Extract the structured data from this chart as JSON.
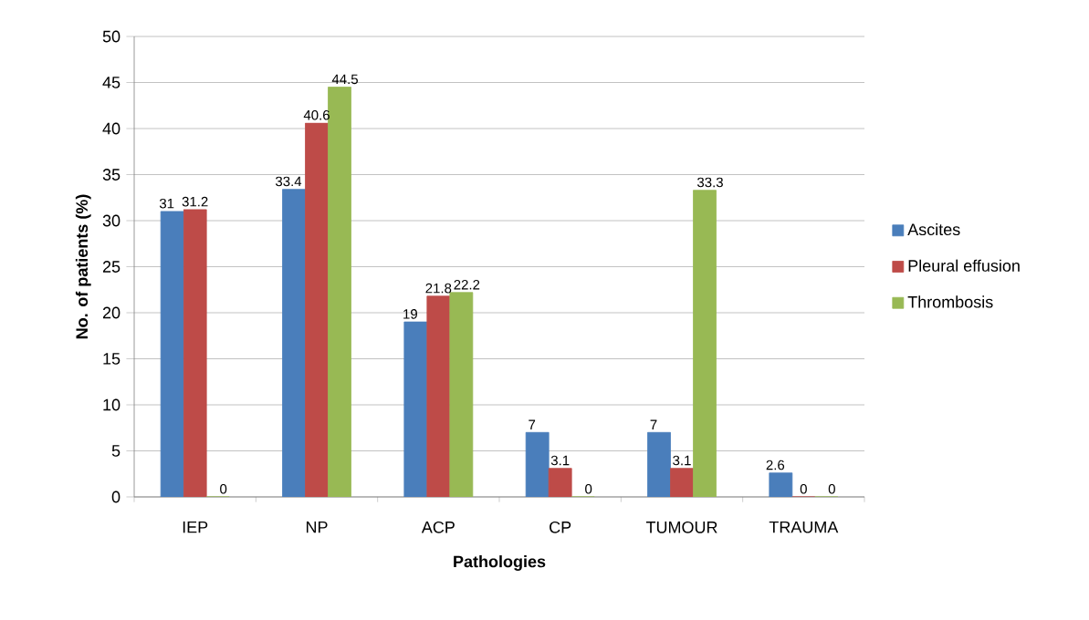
{
  "chart_data": {
    "type": "bar",
    "xlabel": "Pathologies",
    "ylabel": "No. of patients (%)",
    "categories": [
      "IEP",
      "NP",
      "ACP",
      "CP",
      "TUMOUR",
      "TRAUMA"
    ],
    "series": [
      {
        "name": "Ascites",
        "color": "#4a7ebb",
        "values": [
          31,
          33.4,
          19,
          7,
          7,
          2.6
        ]
      },
      {
        "name": "Pleural effusion",
        "color": "#be4b48",
        "values": [
          31.2,
          40.6,
          21.8,
          3.1,
          3.1,
          0
        ]
      },
      {
        "name": "Thrombosis",
        "color": "#98b954",
        "values": [
          0,
          44.5,
          22.2,
          0,
          33.3,
          0
        ]
      }
    ],
    "ylim": [
      0,
      50
    ],
    "yticks": [
      0,
      5,
      10,
      15,
      20,
      25,
      30,
      35,
      40,
      45,
      50
    ],
    "grid": "y",
    "legend": "right",
    "data_labels": true
  }
}
